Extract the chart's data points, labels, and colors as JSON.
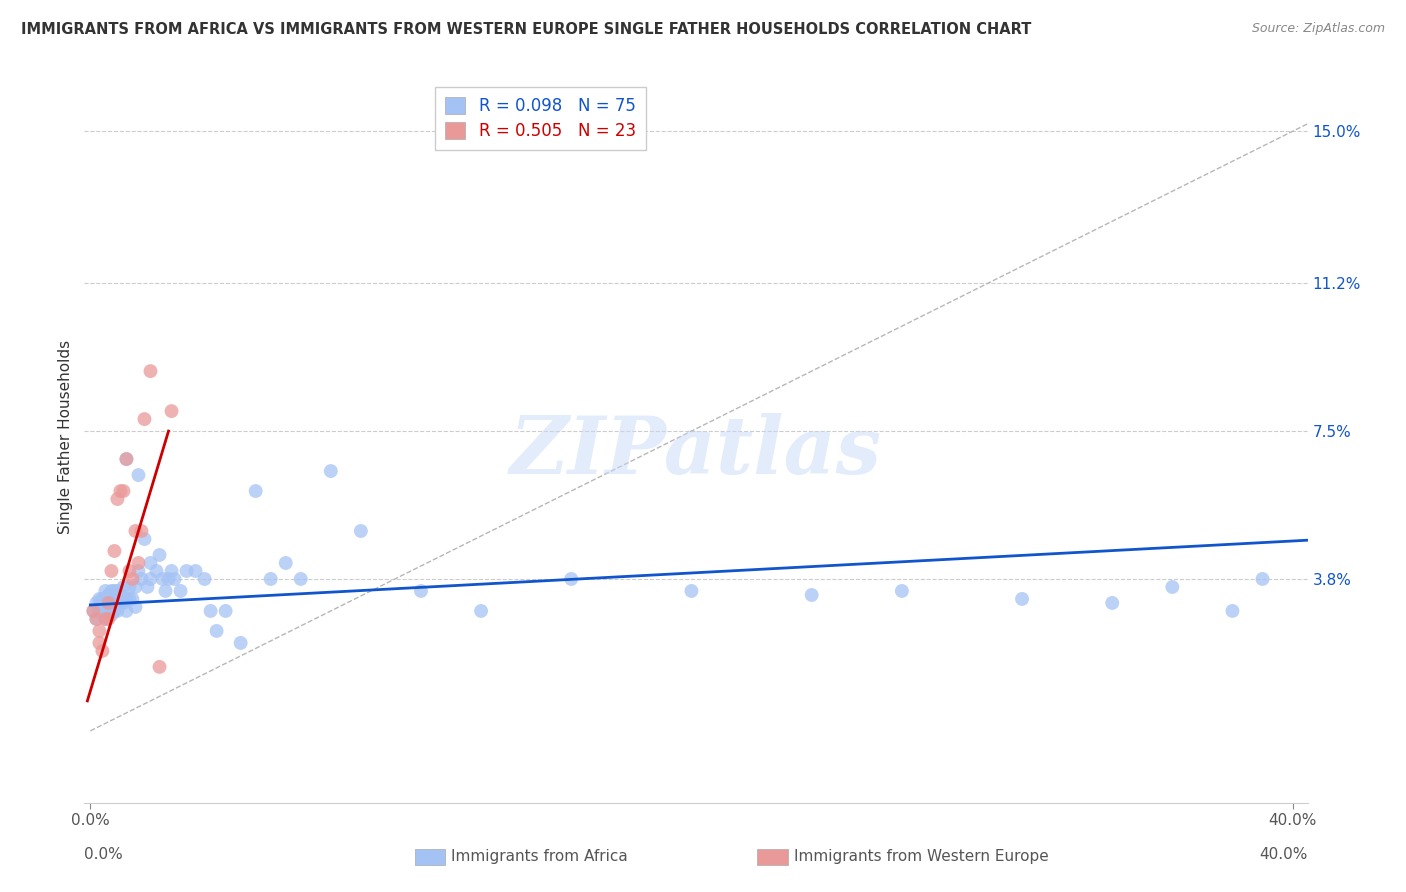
{
  "title": "IMMIGRANTS FROM AFRICA VS IMMIGRANTS FROM WESTERN EUROPE SINGLE FATHER HOUSEHOLDS CORRELATION CHART",
  "source": "Source: ZipAtlas.com",
  "ylabel": "Single Father Households",
  "y_tick_labels": [
    "15.0%",
    "11.2%",
    "7.5%",
    "3.8%"
  ],
  "y_tick_values": [
    0.15,
    0.112,
    0.075,
    0.038
  ],
  "xlim": [
    -0.002,
    0.405
  ],
  "ylim": [
    -0.018,
    0.165
  ],
  "africa_color": "#a4c2f4",
  "europe_color": "#ea9999",
  "africa_line_color": "#1155cc",
  "europe_line_color": "#cc0000",
  "diagonal_color": "#b7b7b7",
  "background_color": "#ffffff",
  "grid_color": "#cccccc",
  "watermark": "ZIPatlas",
  "africa_scatter_x": [
    0.001,
    0.002,
    0.002,
    0.003,
    0.003,
    0.003,
    0.004,
    0.004,
    0.005,
    0.005,
    0.005,
    0.005,
    0.006,
    0.006,
    0.006,
    0.007,
    0.007,
    0.007,
    0.008,
    0.008,
    0.008,
    0.009,
    0.009,
    0.009,
    0.01,
    0.01,
    0.011,
    0.011,
    0.012,
    0.012,
    0.013,
    0.013,
    0.014,
    0.015,
    0.015,
    0.016,
    0.017,
    0.018,
    0.019,
    0.02,
    0.02,
    0.022,
    0.023,
    0.024,
    0.025,
    0.026,
    0.027,
    0.028,
    0.03,
    0.032,
    0.035,
    0.038,
    0.04,
    0.042,
    0.045,
    0.05,
    0.055,
    0.06,
    0.065,
    0.07,
    0.08,
    0.09,
    0.11,
    0.13,
    0.16,
    0.2,
    0.24,
    0.27,
    0.31,
    0.34,
    0.36,
    0.38,
    0.39,
    0.012,
    0.016
  ],
  "africa_scatter_y": [
    0.03,
    0.032,
    0.028,
    0.031,
    0.03,
    0.033,
    0.029,
    0.033,
    0.028,
    0.031,
    0.033,
    0.035,
    0.03,
    0.032,
    0.034,
    0.029,
    0.033,
    0.035,
    0.03,
    0.032,
    0.035,
    0.03,
    0.033,
    0.035,
    0.032,
    0.034,
    0.032,
    0.036,
    0.03,
    0.033,
    0.033,
    0.036,
    0.033,
    0.031,
    0.036,
    0.04,
    0.038,
    0.048,
    0.036,
    0.038,
    0.042,
    0.04,
    0.044,
    0.038,
    0.035,
    0.038,
    0.04,
    0.038,
    0.035,
    0.04,
    0.04,
    0.038,
    0.03,
    0.025,
    0.03,
    0.022,
    0.06,
    0.038,
    0.042,
    0.038,
    0.065,
    0.05,
    0.035,
    0.03,
    0.038,
    0.035,
    0.034,
    0.035,
    0.033,
    0.032,
    0.036,
    0.03,
    0.038,
    0.068,
    0.064
  ],
  "europe_scatter_x": [
    0.001,
    0.002,
    0.003,
    0.003,
    0.004,
    0.005,
    0.006,
    0.006,
    0.007,
    0.008,
    0.009,
    0.01,
    0.011,
    0.012,
    0.013,
    0.014,
    0.015,
    0.016,
    0.017,
    0.018,
    0.02,
    0.023,
    0.027
  ],
  "europe_scatter_y": [
    0.03,
    0.028,
    0.022,
    0.025,
    0.02,
    0.028,
    0.032,
    0.028,
    0.04,
    0.045,
    0.058,
    0.06,
    0.06,
    0.068,
    0.04,
    0.038,
    0.05,
    0.042,
    0.05,
    0.078,
    0.09,
    0.016,
    0.08
  ]
}
